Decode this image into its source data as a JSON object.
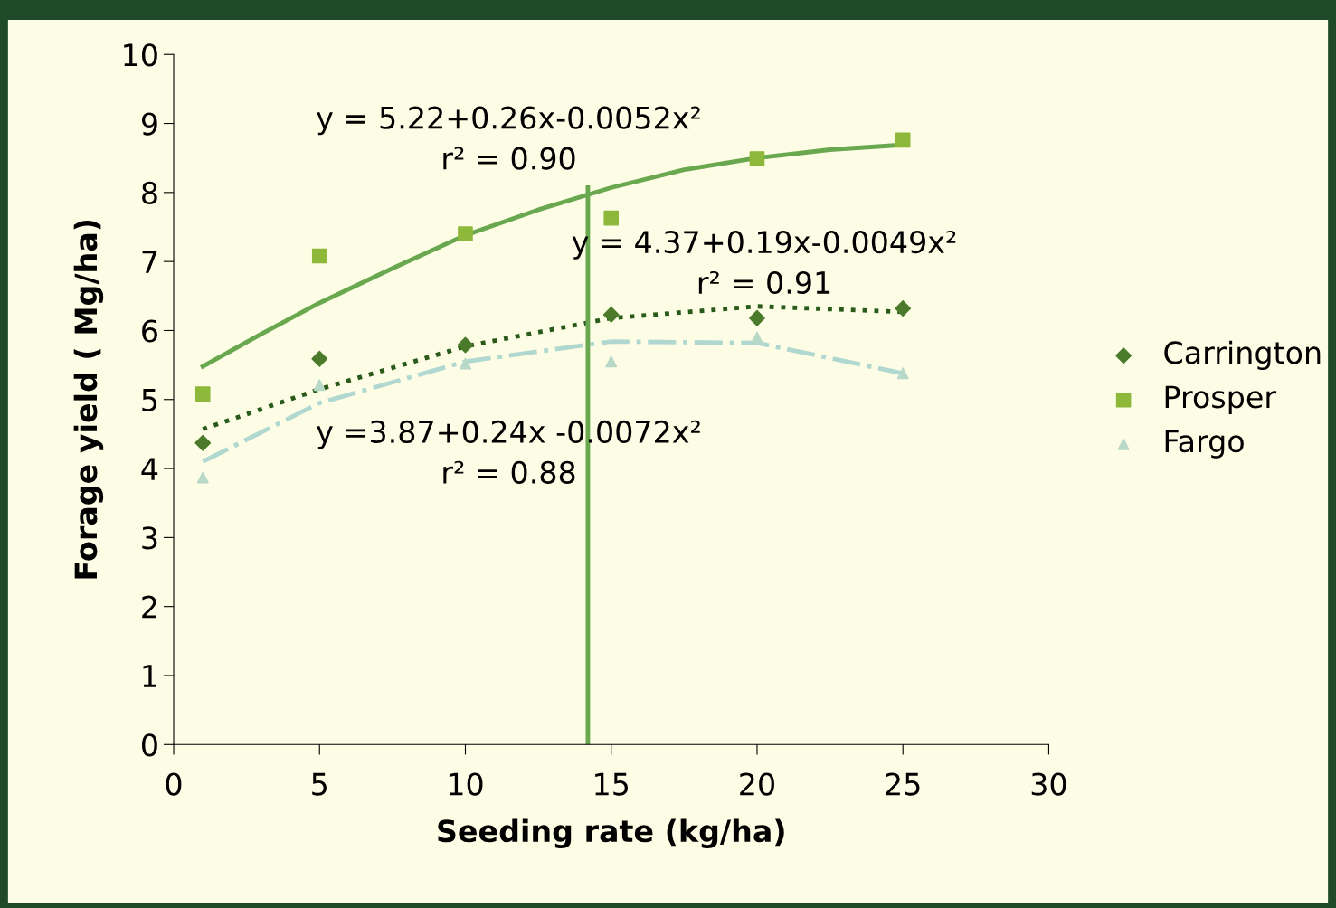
{
  "chart_data": {
    "type": "scatter",
    "xlabel": "Seeding rate (kg/ha)",
    "ylabel": "Forage yield ( Mg/ha)",
    "xlim": [
      0,
      30
    ],
    "xticks": [
      0,
      5,
      10,
      15,
      20,
      25,
      30
    ],
    "ylim": [
      0,
      10
    ],
    "yticks": [
      0,
      1,
      2,
      3,
      4,
      5,
      6,
      7,
      8,
      9,
      10
    ],
    "grid": false,
    "legend": "right",
    "series": [
      {
        "name": "Carrington",
        "marker": "diamond",
        "color": "#4a7a2a",
        "x": [
          1,
          5,
          10,
          15,
          20,
          25
        ],
        "values": [
          4.37,
          5.59,
          5.79,
          6.23,
          6.18,
          6.32
        ]
      },
      {
        "name": "Prosper",
        "marker": "square",
        "color": "#8db83a",
        "x": [
          1,
          5,
          10,
          15,
          20,
          25
        ],
        "values": [
          5.08,
          7.08,
          7.4,
          7.63,
          8.49,
          8.76
        ]
      },
      {
        "name": "Fargo",
        "marker": "triangle",
        "color": "#b8d8c8",
        "x": [
          1,
          5,
          10,
          15,
          20,
          25
        ],
        "values": [
          3.87,
          5.21,
          5.52,
          5.55,
          5.9,
          5.38
        ]
      },
      {
        "type": "line",
        "line_style": "solid",
        "color": "#6aa84f",
        "x": [
          1,
          3,
          5,
          7.5,
          10,
          12.5,
          15,
          17.5,
          20,
          22.5,
          25
        ],
        "values": [
          5.48,
          5.95,
          6.4,
          6.9,
          7.38,
          7.75,
          8.07,
          8.33,
          8.5,
          8.62,
          8.69
        ]
      },
      {
        "type": "line",
        "line_style": "dotted",
        "color": "#2a5a1a",
        "x": [
          1,
          5,
          10,
          15,
          20,
          25
        ],
        "values": [
          4.57,
          5.15,
          5.77,
          6.18,
          6.35,
          6.27
        ]
      },
      {
        "type": "line",
        "line_style": "dashdot",
        "color": "#b0d8d0",
        "x": [
          1,
          5,
          10,
          15,
          20,
          25
        ],
        "values": [
          4.1,
          4.95,
          5.55,
          5.84,
          5.82,
          5.38
        ]
      },
      {
        "type": "line",
        "line_style": "solid",
        "color": "#6aa84f",
        "x": [
          14.2,
          14.2
        ],
        "values": [
          0,
          8.07
        ]
      }
    ],
    "annotations": [
      "y = 5.22+0.26x-0.0052x²\nr² = 0.90",
      "y = 4.37+0.19x-0.0049x²\nr² = 0.91",
      "y =3.87+0.24x -0.0072x²\nr² = 0.88"
    ]
  }
}
